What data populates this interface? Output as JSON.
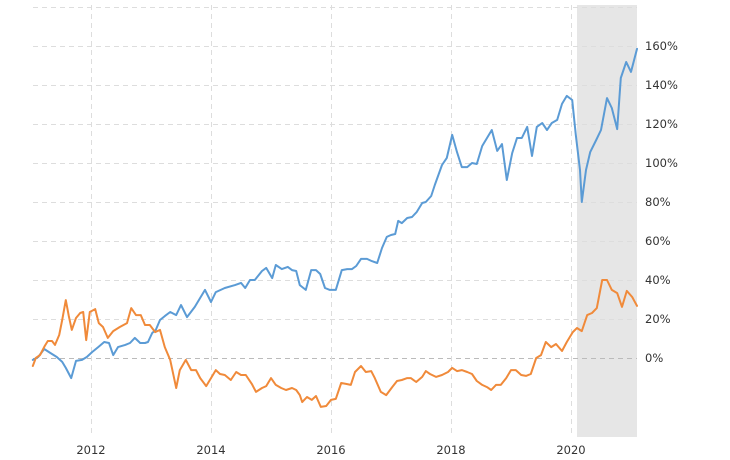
{
  "chart_data": {
    "type": "line",
    "title": "",
    "xlabel": "",
    "ylabel": "",
    "xlim": [
      2011.0,
      2021.1
    ],
    "ylim": [
      -40,
      180
    ],
    "grid": true,
    "legend": null,
    "x_ticks": [
      {
        "value": 2012,
        "label": "2012"
      },
      {
        "value": 2014,
        "label": "2014"
      },
      {
        "value": 2016,
        "label": "2016"
      },
      {
        "value": 2018,
        "label": "2018"
      },
      {
        "value": 2020,
        "label": "2020"
      }
    ],
    "y_ticks": [
      {
        "value": 160,
        "label": "160%"
      },
      {
        "value": 140,
        "label": "140%"
      },
      {
        "value": 120,
        "label": "120%"
      },
      {
        "value": 100,
        "label": "100%"
      },
      {
        "value": 80,
        "label": "80%"
      },
      {
        "value": 60,
        "label": "60%"
      },
      {
        "value": 40,
        "label": "40%"
      },
      {
        "value": 20,
        "label": "20%"
      },
      {
        "value": 0,
        "label": "0%"
      }
    ],
    "y_unlabeled_gridlines": [
      180
    ],
    "shaded_regions": [
      {
        "x_start": 2020.1,
        "x_end": 2021.1,
        "color": "#E6E6E6"
      }
    ],
    "series": [
      {
        "name": "Blue series",
        "color": "#5B9BD5",
        "x": [
          2011.03,
          2011.12,
          2011.22,
          2011.32,
          2011.43,
          2011.52,
          2011.58,
          2011.67,
          2011.75,
          2011.85,
          2011.93,
          2012.02,
          2012.12,
          2012.22,
          2012.3,
          2012.37,
          2012.45,
          2012.57,
          2012.65,
          2012.73,
          2012.82,
          2012.9,
          2012.95,
          2013.02,
          2013.08,
          2013.15,
          2013.23,
          2013.32,
          2013.42,
          2013.5,
          2013.6,
          2013.73,
          2013.9,
          2014.0,
          2014.08,
          2014.23,
          2014.4,
          2014.5,
          2014.57,
          2014.65,
          2014.73,
          2014.85,
          2014.92,
          2015.02,
          2015.08,
          2015.18,
          2015.28,
          2015.35,
          2015.42,
          2015.48,
          2015.58,
          2015.67,
          2015.75,
          2015.82,
          2015.9,
          2015.98,
          2016.08,
          2016.18,
          2016.27,
          2016.35,
          2016.42,
          2016.5,
          2016.6,
          2016.68,
          2016.77,
          2016.85,
          2016.93,
          2017.0,
          2017.07,
          2017.12,
          2017.18,
          2017.27,
          2017.35,
          2017.43,
          2017.52,
          2017.58,
          2017.67,
          2017.73,
          2017.85,
          2017.93,
          2018.02,
          2018.1,
          2018.18,
          2018.27,
          2018.35,
          2018.43,
          2018.52,
          2018.6,
          2018.68,
          2018.77,
          2018.85,
          2018.93,
          2019.02,
          2019.1,
          2019.18,
          2019.27,
          2019.35,
          2019.43,
          2019.52,
          2019.6,
          2019.68,
          2019.77,
          2019.85,
          2019.93,
          2020.02,
          2020.08,
          2020.15,
          2020.18,
          2020.25,
          2020.32,
          2020.42,
          2020.5,
          2020.6,
          2020.68,
          2020.77,
          2020.83,
          2020.92,
          2021.0,
          2021.1
        ],
        "values": [
          -1,
          0.5,
          4.6,
          2.6,
          0.5,
          -2,
          -5.1,
          -10.3,
          -1.5,
          -1,
          0.5,
          3.1,
          5.6,
          8.2,
          7.7,
          1.5,
          5.6,
          6.7,
          7.7,
          10.3,
          7.7,
          7.7,
          8.2,
          12.8,
          14.4,
          19.5,
          21.5,
          23.6,
          22,
          27.2,
          21,
          26.2,
          34.9,
          28.7,
          33.8,
          35.9,
          37.4,
          38.5,
          35.9,
          40,
          40,
          44.6,
          46.2,
          41,
          47.7,
          45.6,
          46.7,
          45.1,
          44.6,
          37.4,
          34.9,
          45.1,
          45.1,
          43.1,
          35.9,
          34.9,
          34.9,
          45.1,
          45.6,
          45.6,
          47.2,
          50.8,
          50.8,
          49.7,
          48.7,
          56.4,
          62.1,
          63.1,
          63.6,
          70.3,
          69.2,
          71.8,
          72.3,
          74.9,
          79.5,
          80,
          83.1,
          88.7,
          99,
          102.6,
          114.4,
          105.6,
          97.9,
          97.9,
          100,
          99.5,
          108.7,
          112.8,
          116.9,
          106.2,
          109.7,
          91.3,
          105.1,
          112.8,
          112.8,
          118.5,
          103.6,
          118.5,
          120.5,
          116.9,
          120.5,
          122.1,
          130.3,
          134.4,
          132.3,
          114.4,
          96.4,
          80,
          96.4,
          105.6,
          111.8,
          116.9,
          133.3,
          128.2,
          117.4,
          143.6,
          151.8,
          146.7,
          158.5
        ]
      },
      {
        "name": "Orange series",
        "color": "#F08A3A",
        "x": [
          2011.03,
          2011.08,
          2011.15,
          2011.23,
          2011.28,
          2011.35,
          2011.4,
          2011.47,
          2011.52,
          2011.58,
          2011.63,
          2011.68,
          2011.75,
          2011.82,
          2011.87,
          2011.92,
          2011.98,
          2012.07,
          2012.13,
          2012.2,
          2012.28,
          2012.37,
          2012.48,
          2012.6,
          2012.67,
          2012.75,
          2012.83,
          2012.9,
          2012.98,
          2013.07,
          2013.15,
          2013.23,
          2013.32,
          2013.42,
          2013.48,
          2013.58,
          2013.67,
          2013.75,
          2013.82,
          2013.92,
          2014.0,
          2014.08,
          2014.15,
          2014.23,
          2014.33,
          2014.42,
          2014.5,
          2014.58,
          2014.68,
          2014.75,
          2014.85,
          2014.92,
          2015.0,
          2015.08,
          2015.17,
          2015.25,
          2015.35,
          2015.42,
          2015.48,
          2015.52,
          2015.6,
          2015.68,
          2015.75,
          2015.83,
          2015.92,
          2016.0,
          2016.08,
          2016.17,
          2016.25,
          2016.33,
          2016.4,
          2016.5,
          2016.58,
          2016.67,
          2016.73,
          2016.83,
          2016.92,
          2017.02,
          2017.1,
          2017.18,
          2017.27,
          2017.33,
          2017.42,
          2017.52,
          2017.58,
          2017.65,
          2017.75,
          2017.85,
          2017.95,
          2018.02,
          2018.1,
          2018.18,
          2018.27,
          2018.35,
          2018.43,
          2018.52,
          2018.6,
          2018.67,
          2018.75,
          2018.83,
          2018.92,
          2019.0,
          2019.08,
          2019.17,
          2019.25,
          2019.33,
          2019.42,
          2019.5,
          2019.58,
          2019.67,
          2019.75,
          2019.85,
          2019.93,
          2020.03,
          2020.1,
          2020.18,
          2020.27,
          2020.35,
          2020.43,
          2020.52,
          2020.6,
          2020.68,
          2020.77,
          2020.85,
          2020.93,
          2021.02,
          2021.1
        ],
        "values": [
          -4.1,
          0,
          1.5,
          6.2,
          8.7,
          8.7,
          6.7,
          11.8,
          19.5,
          29.7,
          21.5,
          14.4,
          20.5,
          23.1,
          23.6,
          9.2,
          23.6,
          25.1,
          17.9,
          15.9,
          10.3,
          13.8,
          15.9,
          17.9,
          25.6,
          22,
          22,
          16.9,
          16.9,
          13.3,
          14.4,
          5.6,
          -1,
          -15.4,
          -6.2,
          -1,
          -6.2,
          -6.2,
          -10.3,
          -14.4,
          -10.3,
          -6.2,
          -8.2,
          -8.7,
          -11.3,
          -7.2,
          -8.7,
          -8.7,
          -13.3,
          -17.4,
          -15.4,
          -14.4,
          -10.3,
          -13.8,
          -15.4,
          -16.4,
          -15.4,
          -16.4,
          -19,
          -22.6,
          -20,
          -21.5,
          -19.5,
          -25.1,
          -24.6,
          -21.5,
          -21,
          -12.8,
          -13.3,
          -13.8,
          -7.2,
          -4.1,
          -7.2,
          -6.7,
          -10.3,
          -17.4,
          -19,
          -14.9,
          -11.8,
          -11.3,
          -10.3,
          -10.3,
          -12.3,
          -9.7,
          -6.7,
          -8.2,
          -9.7,
          -8.7,
          -7.2,
          -5.1,
          -6.7,
          -6.2,
          -7.2,
          -8.2,
          -11.8,
          -13.8,
          -14.9,
          -16.4,
          -13.8,
          -13.8,
          -10.3,
          -6.2,
          -6.2,
          -8.7,
          -9.2,
          -8.2,
          0,
          1.5,
          8.2,
          5.6,
          7.2,
          3.6,
          8.2,
          13.3,
          15.4,
          13.8,
          22,
          23.1,
          25.6,
          40,
          40,
          34.9,
          33.3,
          26.2,
          34.4,
          31.3,
          26.7
        ]
      }
    ]
  },
  "style": {
    "grid_color": "#DDDDDD",
    "zero_line_color": "#BBBBBB",
    "label_color": "#333333",
    "background": "#FFFFFF"
  }
}
